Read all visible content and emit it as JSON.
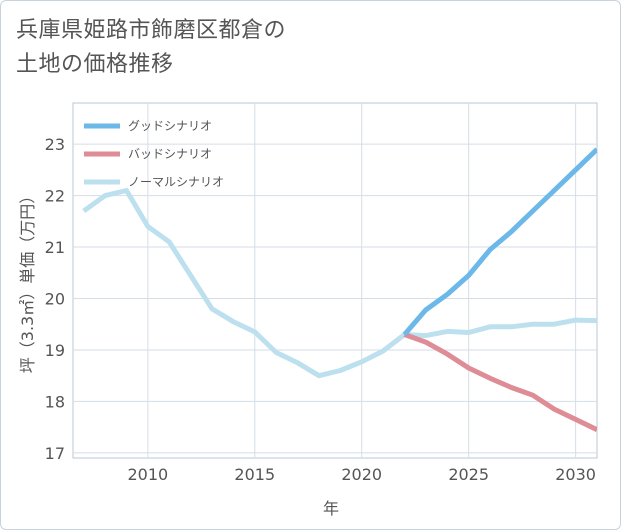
{
  "title": {
    "line1": "兵庫県姫路市飾磨区都倉の",
    "line2": "土地の価格推移"
  },
  "chart_data": {
    "type": "line",
    "title": "兵庫県姫路市飾磨区都倉の土地の価格推移",
    "xlabel": "年",
    "ylabel": "坪（3.3㎡）単価（万円）",
    "xlim": [
      2006.5,
      2031
    ],
    "ylim": [
      16.9,
      23.8
    ],
    "xticks": [
      2010,
      2015,
      2020,
      2025,
      2030
    ],
    "yticks": [
      17,
      18,
      19,
      20,
      21,
      22,
      23
    ],
    "legend_position": "top-left",
    "series": [
      {
        "name": "グッドシナリオ",
        "color": "#6cb8e8",
        "x": [
          2022,
          2023,
          2024,
          2025,
          2026,
          2027,
          2028,
          2029,
          2030,
          2031
        ],
        "values": [
          19.3,
          19.78,
          20.08,
          20.45,
          20.95,
          21.3,
          21.7,
          22.1,
          22.5,
          22.9
        ]
      },
      {
        "name": "バッドシナリオ",
        "color": "#de8c95",
        "x": [
          2022,
          2023,
          2024,
          2025,
          2026,
          2027,
          2028,
          2029,
          2030,
          2031
        ],
        "values": [
          19.3,
          19.15,
          18.92,
          18.65,
          18.45,
          18.27,
          18.12,
          17.85,
          17.65,
          17.45
        ]
      },
      {
        "name": "ノーマルシナリオ",
        "color": "#bde0ee",
        "x": [
          2007,
          2008,
          2009,
          2010,
          2011,
          2012,
          2013,
          2014,
          2015,
          2016,
          2017,
          2018,
          2019,
          2020,
          2021,
          2022,
          2023,
          2024,
          2025,
          2026,
          2027,
          2028,
          2029,
          2030,
          2031
        ],
        "values": [
          21.7,
          22.0,
          22.1,
          21.4,
          21.1,
          20.45,
          19.8,
          19.55,
          19.35,
          18.95,
          18.75,
          18.5,
          18.6,
          18.77,
          18.98,
          19.3,
          19.28,
          19.36,
          19.34,
          19.45,
          19.45,
          19.5,
          19.5,
          19.58,
          19.57
        ]
      }
    ]
  }
}
